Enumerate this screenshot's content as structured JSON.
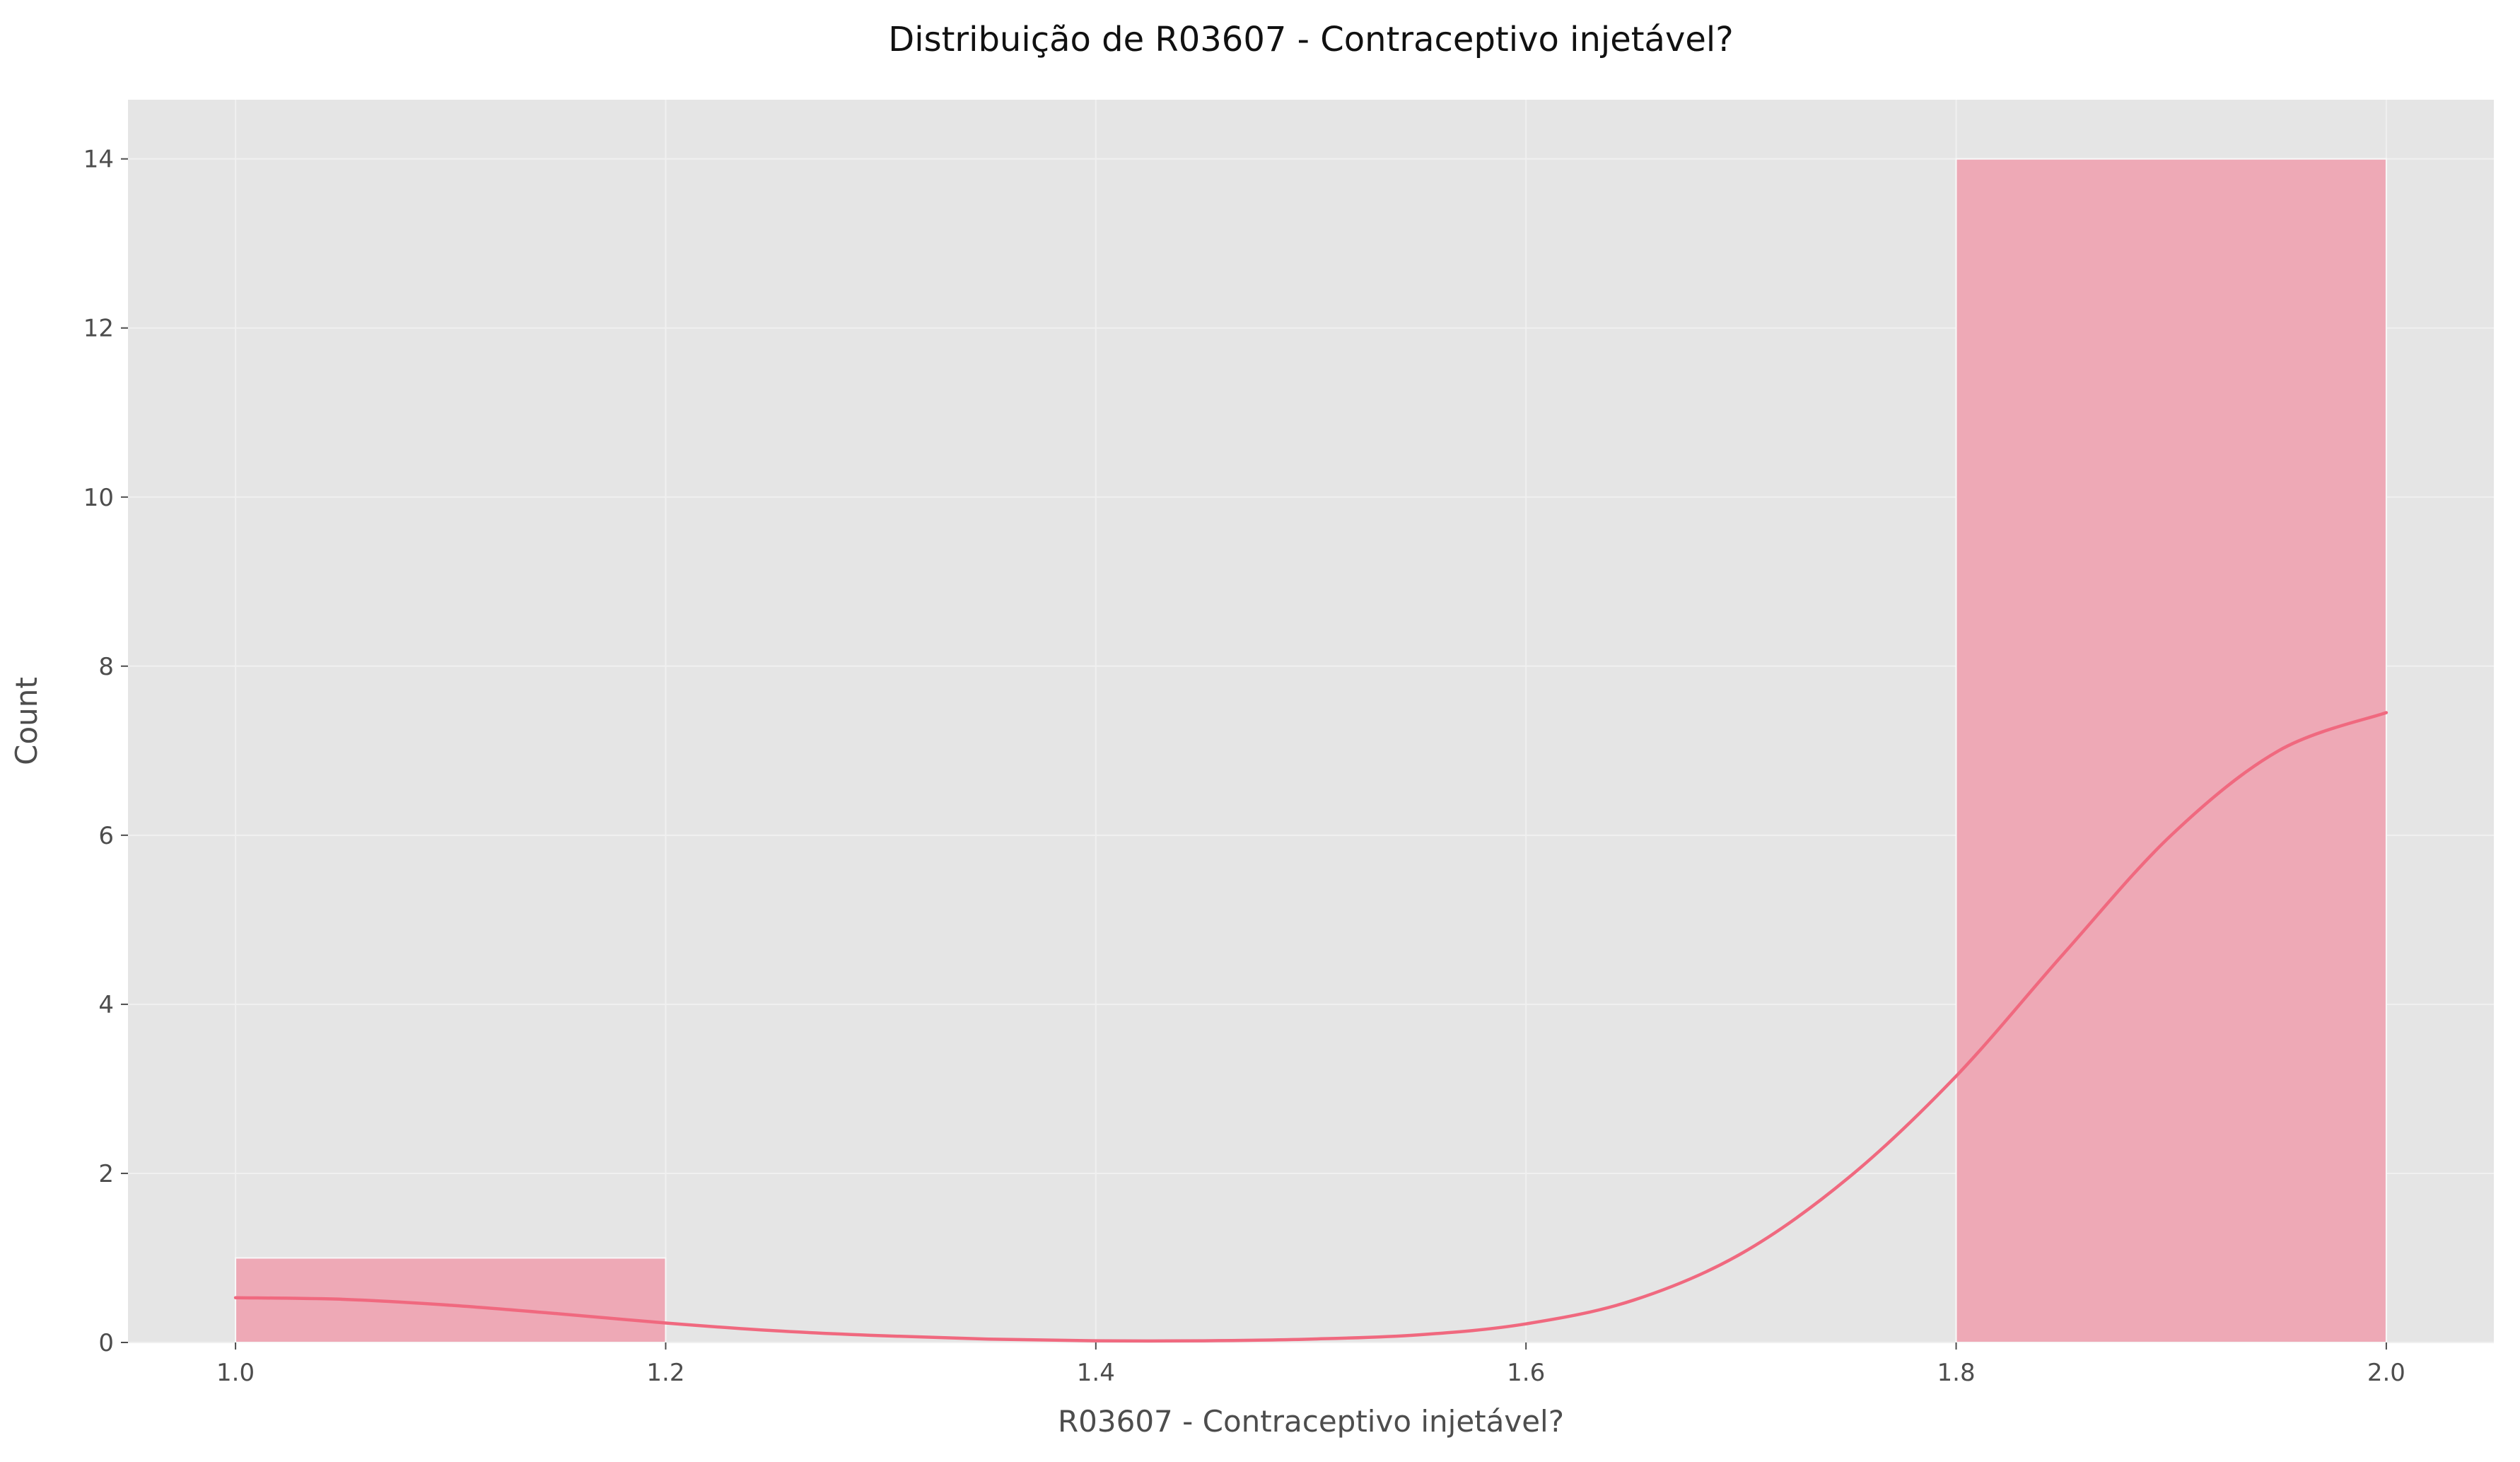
{
  "chart_data": {
    "type": "bar",
    "subtype": "histogram-with-kde",
    "title": "Distribuição de R03607 - Contraceptivo injetável?",
    "xlabel": "R03607 - Contraceptivo injetável?",
    "ylabel": "Count",
    "xlim": [
      0.95,
      2.05
    ],
    "ylim": [
      0,
      14.7
    ],
    "x_ticks": [
      1.0,
      1.2,
      1.4,
      1.6,
      1.8,
      2.0
    ],
    "x_tick_labels": [
      "1.0",
      "1.2",
      "1.4",
      "1.6",
      "1.8",
      "2.0"
    ],
    "y_ticks": [
      0,
      2,
      4,
      6,
      8,
      10,
      12,
      14
    ],
    "y_tick_labels": [
      "0",
      "2",
      "4",
      "6",
      "8",
      "10",
      "12",
      "14"
    ],
    "grid": true,
    "bins": [
      {
        "x0": 1.0,
        "x1": 1.2,
        "count": 1
      },
      {
        "x0": 1.8,
        "x1": 2.0,
        "count": 14
      }
    ],
    "kde": {
      "x": [
        1.0,
        1.05,
        1.1,
        1.15,
        1.2,
        1.25,
        1.3,
        1.35,
        1.4,
        1.45,
        1.5,
        1.55,
        1.6,
        1.65,
        1.7,
        1.75,
        1.8,
        1.85,
        1.9,
        1.95,
        2.0
      ],
      "y": [
        0.53,
        0.51,
        0.44,
        0.34,
        0.23,
        0.14,
        0.08,
        0.04,
        0.02,
        0.02,
        0.04,
        0.09,
        0.22,
        0.5,
        1.05,
        1.95,
        3.15,
        4.6,
        6.0,
        7.0,
        7.45
      ]
    },
    "colors": {
      "figure_bg": "#ffffff",
      "axes_bg": "#e5e5e5",
      "grid": "#f0f0f0",
      "bar_fill": "#eea9b6",
      "bar_edge": "#f8f8f8",
      "kde_line": "#f0697f",
      "text": "#4d4d4d",
      "title_text": "#111111"
    }
  }
}
